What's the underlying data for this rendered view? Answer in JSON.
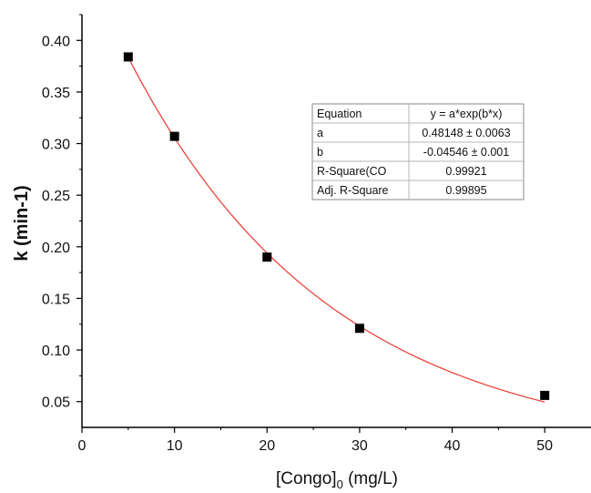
{
  "chart_data": {
    "type": "scatter",
    "xlabel": "[Congo]",
    "xlabel_sub": "0",
    "xlabel_unit": " (mg/L)",
    "ylabel": "k (min-1)",
    "xlim": [
      0,
      55
    ],
    "ylim": [
      0.025,
      0.425
    ],
    "x_ticks": [
      "0",
      "10",
      "20",
      "30",
      "40",
      "50"
    ],
    "x_tick_values": [
      0,
      10,
      20,
      30,
      40,
      50
    ],
    "y_ticks": [
      "0.05",
      "0.10",
      "0.15",
      "0.20",
      "0.25",
      "0.30",
      "0.35",
      "0.40"
    ],
    "y_tick_values": [
      0.05,
      0.1,
      0.15,
      0.2,
      0.25,
      0.3,
      0.35,
      0.4
    ],
    "grid": false,
    "marker_color": "#000000",
    "fit_color": "#e8372b",
    "series": [
      {
        "x": [
          5,
          10,
          20,
          30,
          50
        ],
        "y": [
          0.384,
          0.307,
          0.19,
          0.121,
          0.056
        ]
      }
    ],
    "fit": {
      "a": 0.48148,
      "b": -0.04546,
      "x_range": [
        5,
        50
      ]
    },
    "fit_table": [
      [
        "Equation",
        "y = a*exp(b*x)"
      ],
      [
        "a",
        "0.48148 ± 0.0063"
      ],
      [
        "b",
        "-0.04546 ± 0.001"
      ],
      [
        "R-Square(CO",
        "0.99921"
      ],
      [
        "Adj. R-Square",
        "0.99895"
      ]
    ]
  }
}
